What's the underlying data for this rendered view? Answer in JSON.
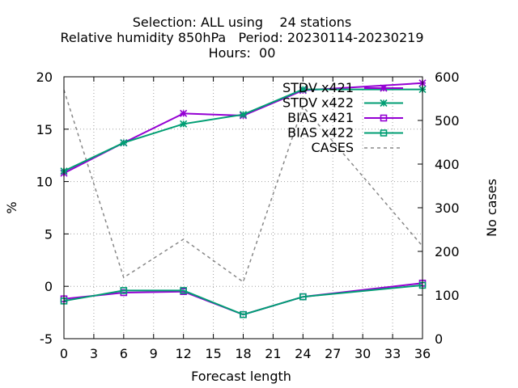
{
  "chart_data": {
    "type": "line",
    "title_lines": [
      "Selection: ALL using    24 stations",
      "Relative humidity 850hPa   Period: 20230114-20230219",
      "Hours:  00"
    ],
    "xlabel": "Forecast length",
    "ylabel": "%",
    "y2label": "No cases",
    "x_ticks": [
      0,
      3,
      6,
      9,
      12,
      15,
      18,
      21,
      24,
      27,
      30,
      33,
      36
    ],
    "y_ticks": [
      -5,
      0,
      5,
      10,
      15,
      20
    ],
    "y2_ticks": [
      0,
      100,
      200,
      300,
      400,
      500,
      600
    ],
    "xlim": [
      0,
      36
    ],
    "ylim": [
      -5,
      20
    ],
    "y2lim": [
      0,
      600
    ],
    "grid": true,
    "legend_position": "top-right",
    "series": [
      {
        "name": "STDV x421",
        "axis": "y",
        "marker": "star",
        "dashed": false,
        "color": "#9400d3",
        "x": [
          0,
          6,
          12,
          18,
          24,
          36
        ],
        "y": [
          10.8,
          13.7,
          16.5,
          16.3,
          18.7,
          19.4
        ]
      },
      {
        "name": "STDV x422",
        "axis": "y",
        "marker": "star",
        "dashed": false,
        "color": "#009e73",
        "x": [
          0,
          6,
          12,
          18,
          24,
          36
        ],
        "y": [
          11.0,
          13.7,
          15.5,
          16.4,
          18.8,
          18.8
        ]
      },
      {
        "name": "BIAS x421",
        "axis": "y",
        "marker": "square",
        "dashed": false,
        "color": "#9400d3",
        "x": [
          0,
          6,
          12,
          18,
          24,
          36
        ],
        "y": [
          -1.2,
          -0.6,
          -0.5,
          -2.7,
          -1.0,
          0.3
        ]
      },
      {
        "name": "BIAS x422",
        "axis": "y",
        "marker": "square",
        "dashed": false,
        "color": "#009e73",
        "x": [
          0,
          6,
          12,
          18,
          24,
          36
        ],
        "y": [
          -1.4,
          -0.4,
          -0.4,
          -2.7,
          -1.0,
          0.1
        ]
      },
      {
        "name": "CASES",
        "axis": "y2",
        "marker": "none",
        "dashed": true,
        "color": "#888888",
        "x": [
          0,
          6,
          12,
          18,
          24,
          36
        ],
        "y": [
          570,
          140,
          228,
          130,
          532,
          212
        ]
      }
    ]
  }
}
